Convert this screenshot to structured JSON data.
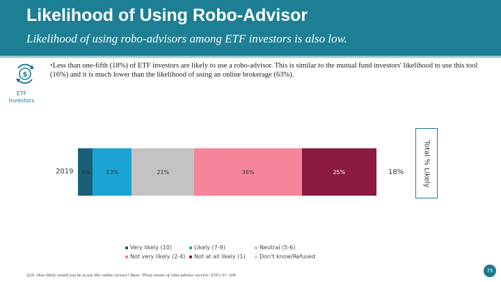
{
  "header": {
    "title": "Likelihood of Using Robo-Advisor",
    "subtitle": "Likelihood of using robo-advisors among ETF investors is also low."
  },
  "logo": {
    "icon": "robo-advisor-dollar-icon",
    "label": "ETF Investors"
  },
  "bullet": {
    "marker": "•",
    "text": "Less than one-fifth (18%) of ETF investors are likely to use a robo-advisor. This is similar to the mutual fund investors' likelihood to use this tool (16%) and it is much lower than the likelihood of using an online brokerage (63%)."
  },
  "chart_data": {
    "type": "bar",
    "orientation": "horizontal",
    "stacked": true,
    "categories": [
      "2019"
    ],
    "series": [
      {
        "name": "Very likely (10)",
        "values": [
          5
        ],
        "label": "5%",
        "color": "#1a5f7a"
      },
      {
        "name": "Likely (7-9)",
        "values": [
          13
        ],
        "label": "13%",
        "color": "#1ba3d4"
      },
      {
        "name": "Neutral (5-6)",
        "values": [
          21
        ],
        "label": "21%",
        "color": "#c3c3c3"
      },
      {
        "name": "Not very likely (2-4)",
        "values": [
          36
        ],
        "label": "36%",
        "color": "#f6849a"
      },
      {
        "name": "Not at all likely (1)",
        "values": [
          25
        ],
        "label": "25%",
        "color": "#8b1a3f"
      },
      {
        "name": "Don't know/Refused",
        "values": [
          0
        ],
        "label": "",
        "color": "#d6d6d6"
      }
    ],
    "total": {
      "label": "Total % Likely",
      "value": "18%"
    },
    "legend_position": "bottom",
    "grid": false
  },
  "footnote": "Q20. How likely would you be to use this online service? Base: Those aware of robo-advisor service: ETFs N= 206",
  "page_number": "75"
}
